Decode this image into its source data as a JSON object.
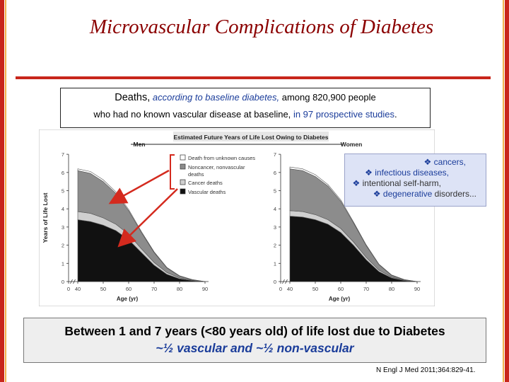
{
  "slide": {
    "title": "Microvascular Complications of Diabetes",
    "subtitle_a1": "Deaths,",
    "subtitle_a2": "according to baseline diabetes,",
    "subtitle_a3": "among 820,900 people",
    "subtitle_b1": "who had no known vascular disease at baseline,",
    "subtitle_b2": "in 97 prospective studies",
    "subtitle_b3": ".",
    "callout": [
      {
        "bullet": "❖",
        "text": "cancers,"
      },
      {
        "bullet": "❖",
        "text": "infectious diseases,"
      },
      {
        "bullet": "❖",
        "text": "intentional self-harm,"
      },
      {
        "bullet": "❖",
        "text": "degenerative",
        "text2": "disorders..."
      }
    ],
    "summary_1": "Between 1 and 7 years (<80 years old) of life lost due to Diabetes",
    "summary_2": "~½ vascular and ~½ non-vascular",
    "reference": "N Engl J Med 2011;364:829-41."
  },
  "colors": {
    "frame_red": "#c8261b",
    "frame_orange": "#f2b24a",
    "title_red": "#8b0000",
    "callout_bg": "#dde3f6",
    "text_blue": "#1a3c9a",
    "unknown": "#ffffff",
    "noncancer": "#8c8c8c",
    "cancer": "#cfcfcf",
    "vascular": "#111111"
  },
  "chart_data": {
    "type": "area",
    "title": "Estimated Future Years of Life Lost Owing to Diabetes",
    "ylabel": "Years of Life Lost",
    "xlabel": "Age (yr)",
    "ylim": [
      0,
      7
    ],
    "yticks": [
      0,
      1,
      2,
      3,
      4,
      5,
      6,
      7
    ],
    "xticks": [
      0,
      40,
      50,
      60,
      70,
      80,
      90
    ],
    "grid": false,
    "legend": [
      {
        "label": "Death from unknown causes",
        "color": "#ffffff"
      },
      {
        "label": "Noncancer, nonvascular",
        "label2": "deaths",
        "color": "#8c8c8c"
      },
      {
        "label": "Cancer deaths",
        "color": "#cfcfcf"
      },
      {
        "label": "Vascular deaths",
        "color": "#111111"
      }
    ],
    "panels": [
      {
        "name": "Men",
        "x": [
          40,
          45,
          50,
          55,
          60,
          65,
          70,
          75,
          80,
          85,
          90
        ],
        "series": [
          {
            "name": "Vascular deaths",
            "values": [
              3.4,
              3.3,
              3.1,
              2.8,
              2.3,
              1.6,
              0.9,
              0.4,
              0.15,
              0.05,
              0.0
            ]
          },
          {
            "name": "Cancer deaths",
            "values": [
              0.45,
              0.45,
              0.4,
              0.35,
              0.3,
              0.2,
              0.15,
              0.1,
              0.05,
              0.02,
              0.0
            ]
          },
          {
            "name": "Noncancer, nonvascular deaths",
            "values": [
              2.25,
              2.2,
              2.0,
              1.7,
              1.3,
              0.9,
              0.55,
              0.25,
              0.1,
              0.03,
              0.0
            ]
          },
          {
            "name": "Death from unknown causes",
            "values": [
              0.1,
              0.1,
              0.1,
              0.08,
              0.07,
              0.05,
              0.04,
              0.03,
              0.02,
              0.01,
              0.0
            ]
          }
        ]
      },
      {
        "name": "Women",
        "x": [
          40,
          45,
          50,
          55,
          60,
          65,
          70,
          75,
          80,
          85,
          90
        ],
        "series": [
          {
            "name": "Vascular deaths",
            "values": [
              3.6,
              3.55,
              3.4,
              3.15,
              2.7,
              2.0,
              1.2,
              0.55,
              0.2,
              0.05,
              0.0
            ]
          },
          {
            "name": "Cancer deaths",
            "values": [
              0.3,
              0.3,
              0.28,
              0.25,
              0.22,
              0.18,
              0.13,
              0.08,
              0.04,
              0.02,
              0.0
            ]
          },
          {
            "name": "Noncancer, nonvascular deaths",
            "values": [
              2.3,
              2.25,
              2.1,
              1.85,
              1.5,
              1.05,
              0.65,
              0.3,
              0.1,
              0.03,
              0.0
            ]
          },
          {
            "name": "Death from unknown causes",
            "values": [
              0.1,
              0.1,
              0.1,
              0.08,
              0.07,
              0.05,
              0.04,
              0.03,
              0.02,
              0.01,
              0.0
            ]
          }
        ]
      }
    ]
  }
}
